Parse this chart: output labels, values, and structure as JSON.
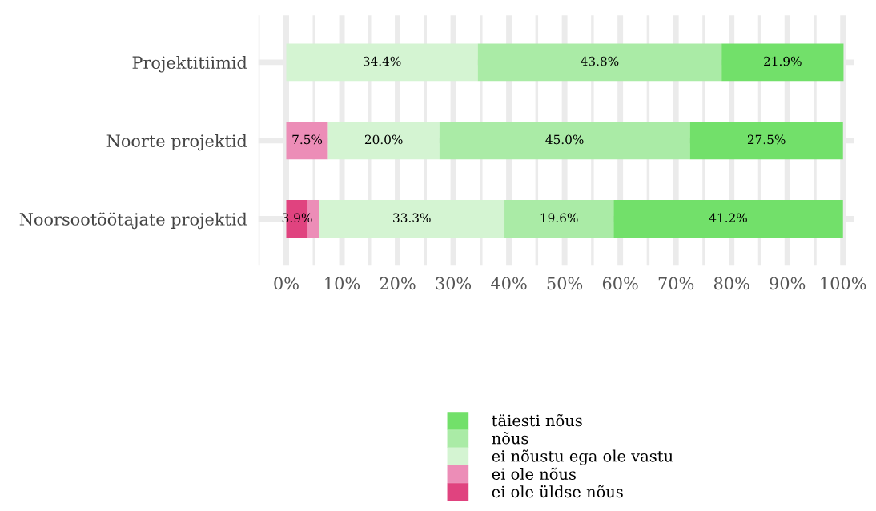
{
  "chart_data": {
    "type": "bar",
    "orientation": "horizontal",
    "stacked": true,
    "categories": [
      "Projektitiimid",
      "Noorte projektid",
      "Noorsootöötajate projektid"
    ],
    "series": [
      {
        "name": "ei ole üldse nõus",
        "color": "#e0437f",
        "values": [
          0,
          0,
          3.9
        ],
        "value_labels": [
          null,
          null,
          "3.9%"
        ]
      },
      {
        "name": "ei ole nõus",
        "color": "#ec8db7",
        "values": [
          0,
          7.5,
          2.0
        ],
        "value_labels": [
          null,
          "7.5%",
          null
        ]
      },
      {
        "name": "ei nõustu ega ole vastu",
        "color": "#d4f4d2",
        "values": [
          34.4,
          20.0,
          33.3
        ],
        "value_labels": [
          "34.4%",
          "20.0%",
          "33.3%"
        ]
      },
      {
        "name": "nõus",
        "color": "#aaeba6",
        "values": [
          43.8,
          45.0,
          19.6
        ],
        "value_labels": [
          "43.8%",
          "45.0%",
          "19.6%"
        ]
      },
      {
        "name": "täiesti nõus",
        "color": "#72e06a",
        "values": [
          21.9,
          27.5,
          41.2
        ],
        "value_labels": [
          "21.9%",
          "27.5%",
          "41.2%"
        ]
      }
    ],
    "xlim": [
      -5,
      102
    ],
    "xticks": [
      {
        "value": 0,
        "label": "0%"
      },
      {
        "value": 10,
        "label": "10%"
      },
      {
        "value": 20,
        "label": "20%"
      },
      {
        "value": 30,
        "label": "30%"
      },
      {
        "value": 40,
        "label": "40%"
      },
      {
        "value": 50,
        "label": "50%"
      },
      {
        "value": 60,
        "label": "60%"
      },
      {
        "value": 70,
        "label": "70%"
      },
      {
        "value": 80,
        "label": "80%"
      },
      {
        "value": 90,
        "label": "90%"
      },
      {
        "value": 100,
        "label": "100%"
      }
    ],
    "grid": true,
    "legend": "bottom"
  }
}
